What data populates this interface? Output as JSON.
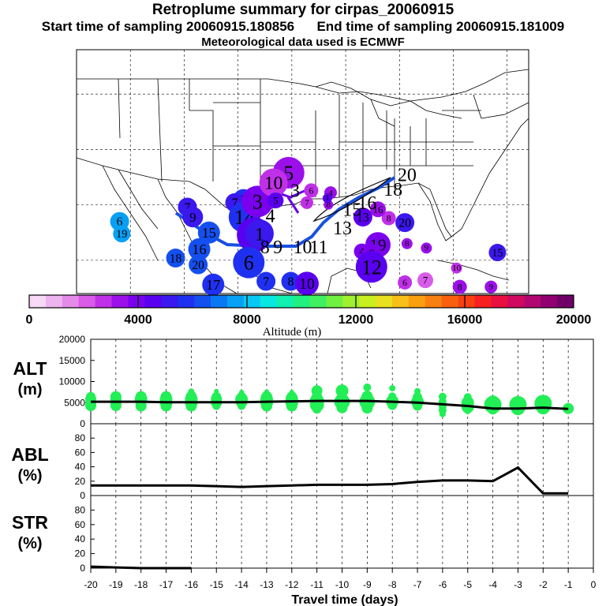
{
  "header": {
    "title": "Retroplume summary for cirpas_20060915",
    "sampling": "Start time of sampling 20060915.180856      End time of sampling 20060915.181009",
    "met": "Meteorological data used is ECMWF"
  },
  "colorbar": {
    "ticks": [
      "0",
      "4000",
      "8000",
      "12000",
      "16000",
      "20000"
    ],
    "label": "Altitude (m)",
    "colors": [
      "#f5d9f5",
      "#eeb4ee",
      "#e48ae8",
      "#d85ce8",
      "#c030e8",
      "#9b10ea",
      "#7a00ee",
      "#5a00f0",
      "#3a18ee",
      "#2030f0",
      "#1450f0",
      "#0a78f2",
      "#08a0f4",
      "#08c8f4",
      "#08e8e0",
      "#10f0b0",
      "#20f080",
      "#40f060",
      "#70f040",
      "#a0f030",
      "#c8f020",
      "#e8e020",
      "#f8c018",
      "#f8a010",
      "#f88010",
      "#f86010",
      "#f84010",
      "#f82020",
      "#e81040",
      "#d00860",
      "#b00870",
      "#900070",
      "#700068"
    ]
  },
  "map": {
    "markers": [
      {
        "label": "9",
        "lon": -104.5,
        "lat": 30.5,
        "alt": 5500,
        "size": 13
      },
      {
        "label": "7",
        "lon": -105.3,
        "lat": 30.2,
        "alt": 5000,
        "size": 12
      },
      {
        "label": "6",
        "lon": -116.0,
        "lat": 28.5,
        "alt": 7500,
        "size": 12
      },
      {
        "label": "19",
        "lon": -115.8,
        "lat": 27.4,
        "alt": 7500,
        "size": 11
      },
      {
        "label": "18",
        "lon": -110.8,
        "lat": 25.2,
        "alt": 6500,
        "size": 12
      },
      {
        "label": "20",
        "lon": -108.7,
        "lat": 24.6,
        "alt": 6500,
        "size": 12
      },
      {
        "label": "16",
        "lon": -108.6,
        "lat": 26.0,
        "alt": 6500,
        "size": 14
      },
      {
        "label": "15",
        "lon": -107.7,
        "lat": 27.5,
        "alt": 6200,
        "size": 14
      },
      {
        "label": "17",
        "lon": -107.3,
        "lat": 22.8,
        "alt": 5500,
        "size": 14
      },
      {
        "label": "7",
        "lon": -109.7,
        "lat": 29.8,
        "alt": 5000,
        "size": 12
      },
      {
        "label": "9",
        "lon": -109.2,
        "lat": 28.9,
        "alt": 5000,
        "size": 13
      },
      {
        "label": "14",
        "lon": -104.4,
        "lat": 28.9,
        "alt": 6000,
        "size": 20
      },
      {
        "label": "3",
        "lon": -103.2,
        "lat": 30.3,
        "alt": 3700,
        "size": 20
      },
      {
        "label": "4",
        "lon": -103.5,
        "lat": 27.3,
        "alt": 4400,
        "size": 22
      },
      {
        "label": "6",
        "lon": -104.0,
        "lat": 24.8,
        "alt": 5800,
        "size": 20
      },
      {
        "label": "1",
        "lon": -103.0,
        "lat": 27.4,
        "alt": 5200,
        "size": 18
      },
      {
        "label": "5",
        "lon": -100.3,
        "lat": 32.9,
        "alt": 3200,
        "size": 20
      },
      {
        "label": "10",
        "lon": -101.7,
        "lat": 32.0,
        "alt": 3000,
        "size": 18
      },
      {
        "label": "6",
        "lon": -98.2,
        "lat": 31.3,
        "alt": 2800,
        "size": 9
      },
      {
        "label": "7",
        "lon": -98.6,
        "lat": 30.2,
        "alt": 2600,
        "size": 8
      },
      {
        "label": "4",
        "lon": -96.4,
        "lat": 31.1,
        "alt": 3500,
        "size": 8
      },
      {
        "label": "8",
        "lon": -96.6,
        "lat": 30.0,
        "alt": 3200,
        "size": 6
      },
      {
        "label": "8",
        "lon": -91.0,
        "lat": 28.8,
        "alt": 3000,
        "size": 9
      },
      {
        "label": "20",
        "lon": -89.5,
        "lat": 28.4,
        "alt": 5200,
        "size": 12
      },
      {
        "label": "13",
        "lon": -93.4,
        "lat": 28.9,
        "alt": 4600,
        "size": 12
      },
      {
        "label": "19",
        "lon": -92.0,
        "lat": 26.4,
        "alt": 4200,
        "size": 16
      },
      {
        "label": "4",
        "lon": -93.5,
        "lat": 25.8,
        "alt": 4000,
        "size": 10
      },
      {
        "label": "6",
        "lon": -92.6,
        "lat": 25.6,
        "alt": 3800,
        "size": 12
      },
      {
        "label": "12",
        "lon": -92.6,
        "lat": 24.4,
        "alt": 4800,
        "size": 20
      },
      {
        "label": "8",
        "lon": -89.3,
        "lat": 26.5,
        "alt": 3400,
        "size": 7
      },
      {
        "label": "9",
        "lon": -87.5,
        "lat": 26.1,
        "alt": 3400,
        "size": 7
      },
      {
        "label": "15",
        "lon": -80.9,
        "lat": 25.7,
        "alt": 5200,
        "size": 11
      },
      {
        "label": "10",
        "lon": -84.7,
        "lat": 24.3,
        "alt": 3000,
        "size": 7
      },
      {
        "label": "6",
        "lon": -89.5,
        "lat": 23.0,
        "alt": 2500,
        "size": 9
      },
      {
        "label": "7",
        "lon": -87.6,
        "lat": 23.2,
        "alt": 2000,
        "size": 10
      },
      {
        "label": "8",
        "lon": -84.4,
        "lat": 22.6,
        "alt": 3200,
        "size": 9
      },
      {
        "label": "9",
        "lon": -81.5,
        "lat": 22.6,
        "alt": 3200,
        "size": 8
      },
      {
        "label": "7",
        "lon": -102.4,
        "lat": 23.1,
        "alt": 6000,
        "size": 12
      },
      {
        "label": "8",
        "lon": -100.1,
        "lat": 23.1,
        "alt": 5500,
        "size": 12
      },
      {
        "label": "10",
        "lon": -98.6,
        "lat": 22.9,
        "alt": 4800,
        "size": 15
      },
      {
        "label": "16",
        "lon": -92.0,
        "lat": 29.6,
        "alt": 3600,
        "size": 10
      },
      {
        "label": "1",
        "lon": -96.7,
        "lat": 30.6,
        "alt": 4500,
        "size": 6
      },
      {
        "label": "5",
        "lon": -101.5,
        "lat": 30.4,
        "alt": 4500,
        "size": 10
      }
    ],
    "route_labels": [
      {
        "label": "8",
        "lon": -102.5,
        "lat": 26.2
      },
      {
        "label": "9",
        "lon": -101.3,
        "lat": 26.2
      },
      {
        "label": "10",
        "lon": -99.0,
        "lat": 26.2
      },
      {
        "label": "11",
        "lon": -97.5,
        "lat": 26.2
      },
      {
        "label": "13",
        "lon": -95.3,
        "lat": 27.9
      },
      {
        "label": "15",
        "lon": -94.4,
        "lat": 29.6
      },
      {
        "label": "16",
        "lon": -93.0,
        "lat": 30.2
      },
      {
        "label": "18",
        "lon": -90.6,
        "lat": 31.4
      },
      {
        "label": "20",
        "lon": -89.3,
        "lat": 32.7
      },
      {
        "label": "3",
        "lon": -99.7,
        "lat": 31.3
      },
      {
        "label": "4",
        "lon": -102.0,
        "lat": 29.0
      }
    ]
  },
  "labels": {
    "alt": "ALT",
    "abl": "ABL",
    "str": "STR",
    "unit_m": "(m)",
    "unit_pct": "(%)",
    "x_axis": "Travel time (days)"
  },
  "chart_data": [
    {
      "type": "line",
      "title": "ALT",
      "ylabel": "ALT (m)",
      "xlabel": "",
      "x": [
        -20,
        -19,
        -18,
        -17,
        -16,
        -15,
        -14,
        -13,
        -12,
        -11,
        -10,
        -9,
        -8,
        -7,
        -6,
        -5,
        -4,
        -3,
        -2,
        -1
      ],
      "values": [
        5200,
        5200,
        5200,
        5100,
        5100,
        5100,
        5100,
        5200,
        5300,
        5400,
        5400,
        5400,
        5200,
        5000,
        4600,
        4200,
        3600,
        3600,
        3800,
        3500
      ],
      "ylim": [
        0,
        20000
      ],
      "yticks": [
        "0",
        "5000",
        "10000",
        "15000",
        "20000"
      ],
      "scatter_groups": [
        {
          "day": -20,
          "alts": [
            4300,
            5000,
            5800,
            6400
          ],
          "sizes": [
            7,
            7,
            7,
            6
          ]
        },
        {
          "day": -19,
          "alts": [
            4300,
            5000,
            5800,
            6400
          ],
          "sizes": [
            7,
            7,
            7,
            7
          ]
        },
        {
          "day": -18,
          "alts": [
            4200,
            5000,
            5800,
            6400
          ],
          "sizes": [
            7,
            7,
            8,
            7
          ]
        },
        {
          "day": -17,
          "alts": [
            4200,
            5000,
            5800,
            6400
          ],
          "sizes": [
            7,
            8,
            8,
            7
          ]
        },
        {
          "day": -16,
          "alts": [
            4200,
            5000,
            5800,
            6400,
            7600
          ],
          "sizes": [
            7,
            8,
            8,
            7,
            4
          ]
        },
        {
          "day": -15,
          "alts": [
            4200,
            5000,
            5800,
            6400,
            7700
          ],
          "sizes": [
            5,
            7,
            7,
            6,
            3
          ]
        },
        {
          "day": -14,
          "alts": [
            4200,
            5000,
            5800,
            6400,
            7500
          ],
          "sizes": [
            5,
            7,
            8,
            6,
            3
          ]
        },
        {
          "day": -13,
          "alts": [
            4200,
            5000,
            5800,
            6400,
            7600
          ],
          "sizes": [
            7,
            8,
            8,
            7,
            3
          ]
        },
        {
          "day": -12,
          "alts": [
            4200,
            5000,
            5800,
            6300,
            7500
          ],
          "sizes": [
            7,
            8,
            8,
            7,
            3
          ]
        },
        {
          "day": -11,
          "alts": [
            3500,
            4500,
            5400,
            6200,
            7800
          ],
          "sizes": [
            6,
            9,
            9,
            7,
            7
          ]
        },
        {
          "day": -10,
          "alts": [
            3800,
            5200,
            6200,
            7800
          ],
          "sizes": [
            7,
            10,
            7,
            8
          ]
        },
        {
          "day": -9,
          "alts": [
            3700,
            5200,
            6500,
            8600
          ],
          "sizes": [
            7,
            10,
            7,
            5
          ]
        },
        {
          "day": -8,
          "alts": [
            4400,
            5300,
            6500,
            8400
          ],
          "sizes": [
            6,
            8,
            5,
            4
          ]
        },
        {
          "day": -7,
          "alts": [
            4200,
            5200,
            6300,
            7700
          ],
          "sizes": [
            6,
            8,
            6,
            4
          ]
        },
        {
          "day": -6,
          "alts": [
            2300,
            3200,
            4200,
            5200,
            6400
          ],
          "sizes": [
            4,
            5,
            5,
            5,
            5
          ]
        },
        {
          "day": -5,
          "alts": [
            3000,
            4000,
            5000,
            6300
          ],
          "sizes": [
            4,
            8,
            8,
            5
          ]
        },
        {
          "day": -4,
          "alts": [
            3500,
            4500,
            5200
          ],
          "sizes": [
            7,
            11,
            8
          ]
        },
        {
          "day": -3,
          "alts": [
            3700,
            4500
          ],
          "sizes": [
            9,
            11
          ]
        },
        {
          "day": -2,
          "alts": [
            3900,
            4800
          ],
          "sizes": [
            9,
            11
          ]
        },
        {
          "day": -1,
          "alts": [
            3600
          ],
          "sizes": [
            7
          ]
        }
      ]
    },
    {
      "type": "line",
      "title": "ABL",
      "ylabel": "ABL (%)",
      "xlabel": "",
      "x": [
        -20,
        -19,
        -18,
        -17,
        -16,
        -15,
        -14,
        -13,
        -12,
        -11,
        -10,
        -9,
        -8,
        -7,
        -6,
        -5,
        -4,
        -3,
        -2,
        -1
      ],
      "values": [
        14,
        14,
        14,
        14,
        14,
        13,
        12,
        13,
        14,
        15,
        15,
        15,
        16,
        19,
        21,
        21,
        20,
        39,
        3,
        3
      ],
      "ylim": [
        0,
        100
      ],
      "yticks": [
        "0",
        "20",
        "40",
        "60",
        "80"
      ]
    },
    {
      "type": "line",
      "title": "STR",
      "ylabel": "STR (%)",
      "xlabel": "Travel time (days)",
      "x": [
        -20,
        -19,
        -18,
        -17,
        -16
      ],
      "values": [
        2,
        1,
        0,
        0,
        0
      ],
      "ylim": [
        0,
        100
      ],
      "yticks": [
        "0",
        "20",
        "40",
        "60",
        "80"
      ],
      "xticks": [
        "-20",
        "-19",
        "-18",
        "-17",
        "-16",
        "-15",
        "-14",
        "-13",
        "-12",
        "-11",
        "-10",
        "-9",
        "-8",
        "-7",
        "-6",
        "-5",
        "-4",
        "-3",
        "-2",
        "-1",
        "0"
      ]
    }
  ]
}
